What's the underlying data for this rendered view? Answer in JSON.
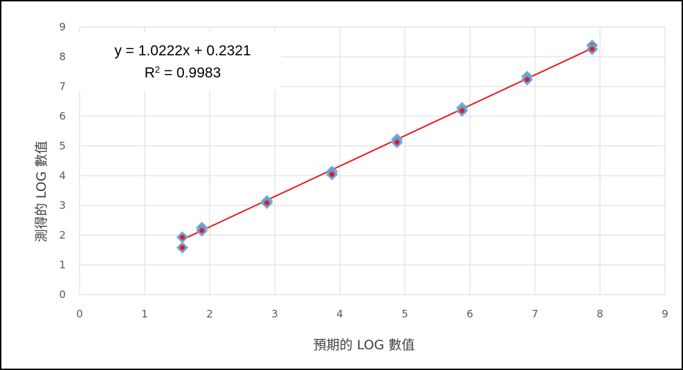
{
  "chart_data": {
    "type": "scatter",
    "xlabel": "預期的 LOG 數值",
    "ylabel": "測得的 LOG 數值",
    "xlim": [
      0,
      9
    ],
    "ylim": [
      0,
      9
    ],
    "x_ticks": [
      "0",
      "1",
      "2",
      "3",
      "4",
      "5",
      "6",
      "7",
      "8",
      "9"
    ],
    "y_ticks": [
      "0",
      "1",
      "2",
      "3",
      "4",
      "5",
      "6",
      "7",
      "8",
      "9"
    ],
    "grid": true,
    "series": [
      {
        "color": "#5b9bd5",
        "marker": "diamond",
        "points": [
          {
            "x": 1.58,
            "y": 1.93
          },
          {
            "x": 1.58,
            "y": 1.58
          },
          {
            "x": 1.88,
            "y": 2.25
          },
          {
            "x": 1.88,
            "y": 2.15
          },
          {
            "x": 2.88,
            "y": 3.15
          },
          {
            "x": 2.88,
            "y": 3.08
          },
          {
            "x": 3.88,
            "y": 4.14
          },
          {
            "x": 3.88,
            "y": 4.04
          },
          {
            "x": 4.88,
            "y": 5.22
          },
          {
            "x": 4.88,
            "y": 5.12
          },
          {
            "x": 5.88,
            "y": 6.28
          },
          {
            "x": 5.88,
            "y": 6.18
          },
          {
            "x": 6.88,
            "y": 7.33
          },
          {
            "x": 6.88,
            "y": 7.23
          },
          {
            "x": 7.88,
            "y": 8.38
          },
          {
            "x": 7.88,
            "y": 8.25
          }
        ]
      }
    ],
    "trendline": {
      "type": "linear",
      "slope": 1.0222,
      "intercept": 0.2321,
      "x_range": [
        1.58,
        7.88
      ],
      "color": "#e8191a",
      "equation": "y = 1.0222x + 0.2321",
      "r2_prefix": "R",
      "r2_exponent": "2",
      "r2_value": " = 0.9983"
    }
  }
}
